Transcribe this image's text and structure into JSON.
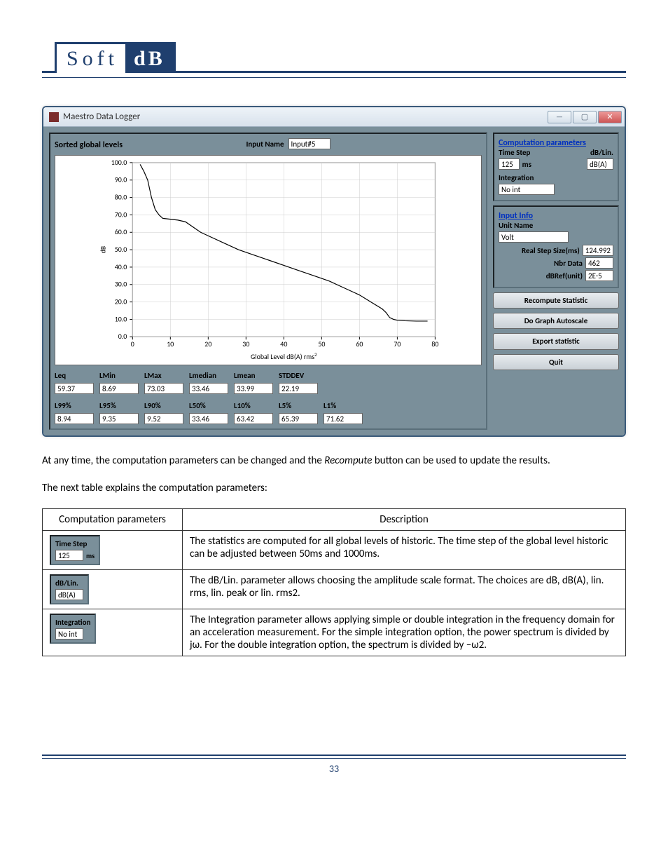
{
  "logo": {
    "left": "Soft",
    "right": "dB"
  },
  "window": {
    "title": "Maestro Data Logger",
    "min": "—",
    "max": "▢",
    "close": "✕"
  },
  "main": {
    "sorted_label": "Sorted global levels",
    "input_name_label": "Input Name",
    "input_name_value": "Input#5",
    "xaxis_label": "Global Level dB(A) rms²",
    "yaxis_unit": "dB",
    "yticks": [
      "0.0",
      "10.0",
      "20.0",
      "30.0",
      "40.0",
      "50.0",
      "60.0",
      "70.0",
      "80.0",
      "90.0",
      "100.0"
    ],
    "xticks": [
      "0",
      "10",
      "20",
      "30",
      "40",
      "50",
      "60",
      "70",
      "80"
    ]
  },
  "chart": {
    "type": "line",
    "xlim": [
      0,
      80
    ],
    "ylim": [
      0,
      100
    ],
    "line_color": "#000000",
    "background_color": "#ffffff",
    "grid_color": "#cccccc",
    "points": [
      [
        2,
        99
      ],
      [
        3,
        95
      ],
      [
        4,
        90
      ],
      [
        5,
        80
      ],
      [
        6,
        73
      ],
      [
        7,
        70
      ],
      [
        8,
        68
      ],
      [
        12,
        67
      ],
      [
        13,
        66.5
      ],
      [
        14,
        66
      ],
      [
        18,
        60
      ],
      [
        20,
        58
      ],
      [
        24,
        54
      ],
      [
        28,
        50
      ],
      [
        32,
        47
      ],
      [
        36,
        44
      ],
      [
        40,
        41
      ],
      [
        44,
        38
      ],
      [
        48,
        35
      ],
      [
        52,
        32
      ],
      [
        56,
        28
      ],
      [
        60,
        24
      ],
      [
        63,
        20
      ],
      [
        66,
        16
      ],
      [
        67,
        14
      ],
      [
        68,
        11
      ],
      [
        69,
        10
      ],
      [
        70,
        9.5
      ],
      [
        72,
        9.2
      ],
      [
        75,
        9.0
      ],
      [
        77,
        9.0
      ],
      [
        78,
        9.0
      ]
    ]
  },
  "stats1": {
    "headers": [
      "Leq",
      "LMin",
      "LMax",
      "Lmedian",
      "Lmean",
      "STDDEV"
    ],
    "values": [
      "59.37",
      "8.69",
      "73.03",
      "33.46",
      "33.99",
      "22.19"
    ]
  },
  "stats2": {
    "headers": [
      "L99%",
      "L95%",
      "L90%",
      "L50%",
      "L10%",
      "L5%",
      "L1%"
    ],
    "values": [
      "8.94",
      "9.35",
      "9.52",
      "33.46",
      "63.42",
      "65.39",
      "71.62"
    ]
  },
  "side": {
    "comp_header": "Computation parameters",
    "time_step_label": "Time Step",
    "time_step_value": "125",
    "time_step_unit": "ms",
    "dblin_label": "dB/Lin.",
    "dblin_value": "dB(A)",
    "integration_label": "Integration",
    "integration_value": "No int",
    "input_info_header": "Input Info",
    "unit_name_label": "Unit Name",
    "unit_name_value": "Volt",
    "real_step_label": "Real Step Size(ms)",
    "real_step_value": "124.992",
    "nbr_data_label": "Nbr Data",
    "nbr_data_value": "462",
    "dbref_label": "dBRef(unit)",
    "dbref_value": "2E-5",
    "btn_recompute": "Recompute Statistic",
    "btn_autoscale": "Do Graph Autoscale",
    "btn_export": "Export statistic",
    "btn_quit": "Quit"
  },
  "text": {
    "p1a": "At any time, the computation parameters can be changed and the ",
    "p1_em": "Recompute",
    "p1b": " button can be used to update the results.",
    "p2": "The next table explains the computation parameters:"
  },
  "table": {
    "h1": "Computation parameters",
    "h2": "Description",
    "r1_label": "Time Step",
    "r1_val": "125",
    "r1_unit": "ms",
    "r1_desc": "The statistics are computed for all global levels of historic. The time step of the global level historic can be adjusted between 50ms and 1000ms.",
    "r2_label": "dB/Lin.",
    "r2_val": "dB(A)",
    "r2_desc": "The dB/Lin. parameter allows choosing the amplitude scale format. The choices are dB, dB(A), lin. rms, lin. peak or lin. rms2.",
    "r3_label": "Integration",
    "r3_val": "No int",
    "r3_desc": "The Integration parameter allows applying simple or double integration in the frequency domain for an acceleration measurement. For the simple integration option, the power spectrum is divided by jω.  For the double integration option, the spectrum is divided by –ω2."
  },
  "page_number": "33"
}
